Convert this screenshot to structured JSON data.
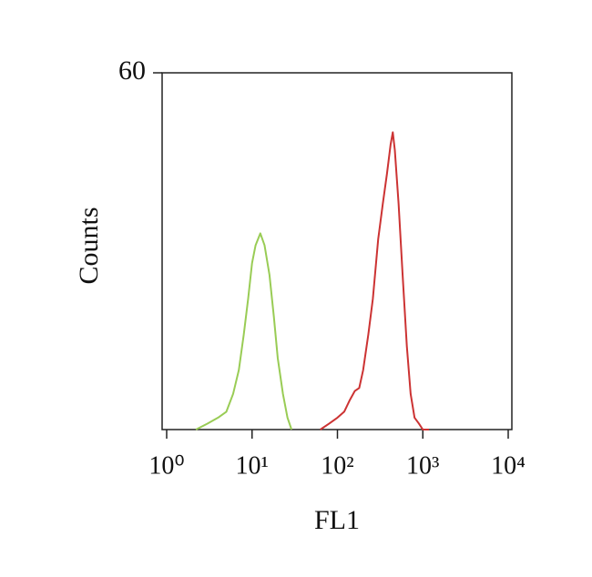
{
  "chart_data": {
    "type": "line",
    "xlabel": "FL1",
    "ylabel": "Counts",
    "xscale": "log",
    "xlim": [
      1,
      10000
    ],
    "xticks": [
      {
        "value": 1,
        "label": "10⁰"
      },
      {
        "value": 10,
        "label": "10¹"
      },
      {
        "value": 100,
        "label": "10²"
      },
      {
        "value": 1000,
        "label": "10³"
      },
      {
        "value": 10000,
        "label": "10⁴"
      }
    ],
    "ylim": [
      0,
      60
    ],
    "yticks": [
      60
    ],
    "series": [
      {
        "color": "#99cc55",
        "x": [
          2.2,
          3,
          4,
          5,
          6,
          7,
          8,
          9,
          10,
          11,
          12.5,
          14,
          16,
          18,
          20,
          23,
          26,
          29
        ],
        "values": [
          0,
          1,
          2,
          3,
          6,
          10,
          16,
          22,
          28,
          31,
          33,
          31,
          26,
          19,
          12,
          6,
          2,
          0
        ]
      },
      {
        "color": "#cc3333",
        "x": [
          63,
          80,
          100,
          120,
          140,
          160,
          180,
          200,
          230,
          260,
          300,
          340,
          380,
          420,
          445,
          470,
          520,
          580,
          650,
          720,
          800,
          900,
          1000,
          1180
        ],
        "values": [
          0,
          1,
          2,
          3,
          5,
          6.5,
          7,
          10,
          16,
          22,
          32,
          38,
          43,
          48,
          50,
          47,
          38,
          26,
          14,
          6,
          2,
          1,
          0,
          0
        ]
      }
    ]
  }
}
